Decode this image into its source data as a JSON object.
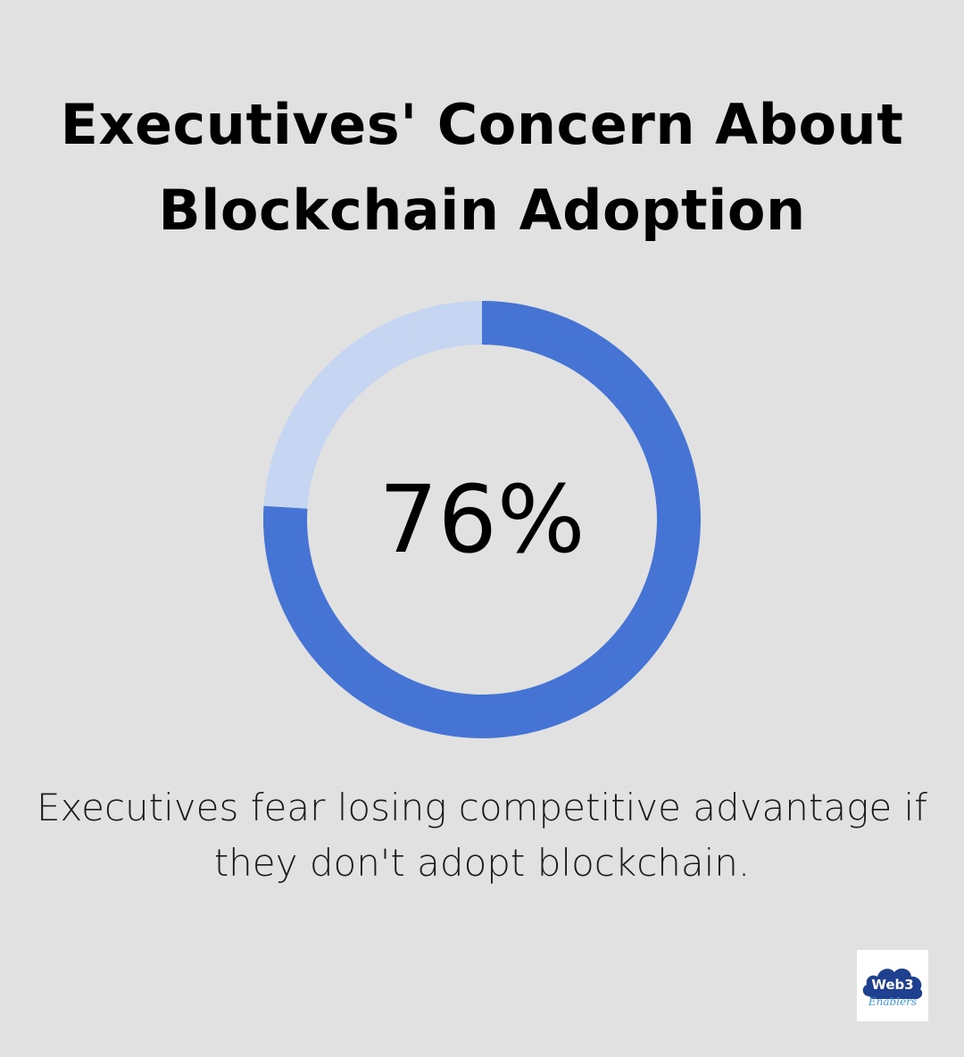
{
  "title": {
    "line1": "Executives' Concern About",
    "line2": "Blockchain Adoption"
  },
  "chart_data": {
    "type": "pie",
    "variant": "donut",
    "value_label": "76%",
    "slices": [
      {
        "value": 76,
        "color": "#4574d4"
      },
      {
        "value": 24,
        "color": "#c6d5f1"
      }
    ]
  },
  "caption": {
    "line1": "Executives fear losing competitive advantage if",
    "line2": "they don't adopt blockchain."
  },
  "logo": {
    "text_main": "Web3",
    "text_sub": "Enablers",
    "icon": "cloud-logo"
  }
}
